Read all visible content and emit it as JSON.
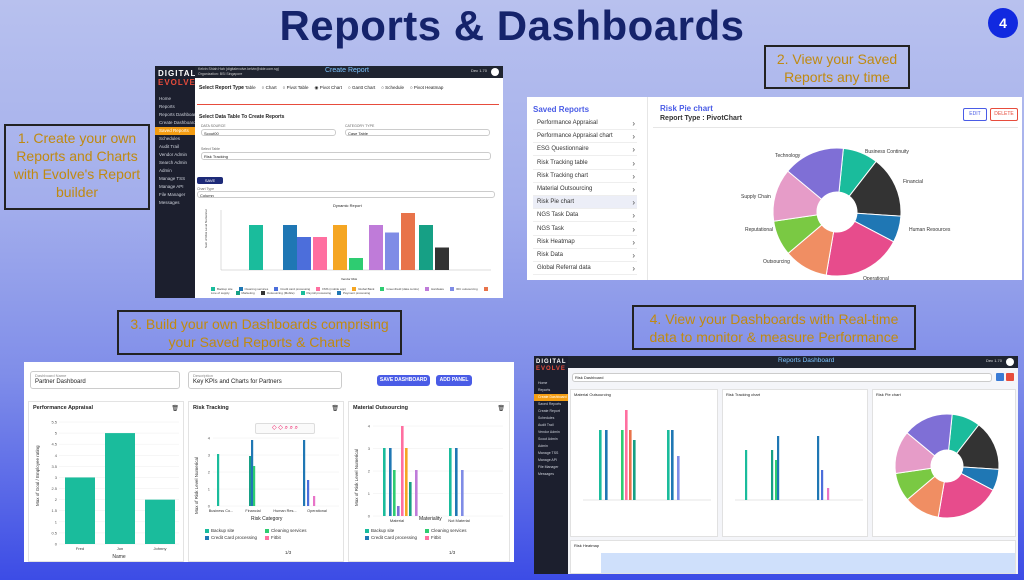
{
  "title": "Reports & Dashboards",
  "page_number": "4",
  "callouts": {
    "c1": "1. Create your own Reports and Charts with Evolve's Report builder",
    "c2": "2. View your Saved Reports any time",
    "c3": "3. Build your own Dashboards comprising your Saved Reports & Charts",
    "c4": "4. View your Dashboards with Real-time data to monitor & measure Performance"
  },
  "shot1": {
    "logo_top": "DIGITAL",
    "logo_bottom": "EVOLVE",
    "user": "Kelvin Shiah Hah (digitalevolve.kelvin@dde.com.sg)",
    "org": "Organization: BSI Singapore",
    "header": "Create Report",
    "header_right": "Dec 1.70",
    "sidebar": [
      "Home",
      "Reports",
      "Reports Dashboard",
      "Create Dashboard",
      "Saved Reports",
      "Schedules",
      "Audit Trail",
      "Vendor Admin",
      "Search Admin",
      "Admin",
      "Manage TSS",
      "Manage API",
      "File Manager",
      "Messages"
    ],
    "report_type_label": "Select Report Type",
    "report_types": [
      "Table",
      "Chart",
      "Pivot Table",
      "Pivot Chart",
      "Gantt Chart",
      "Schedule",
      "Pivot Heatmap"
    ],
    "datatable_heading": "Select Data Table To Create Reports",
    "data_source_label": "DATA SOURCE",
    "data_source_value": "Scout00",
    "category_label": "CATEGORY TYPE",
    "category_value": "Case Table",
    "select_table_label": "Select Table",
    "select_table_value": "Risk Tracking",
    "save_button": "SAVE REPORT",
    "chart_type_label": "Chart Type",
    "chart_type_value": "Column",
    "chart_title": "Dynamic Report",
    "x_axis": "Vendor Risk",
    "y_axis": "Sum of Risk Level Numerical"
  },
  "shot2": {
    "list_title": "Saved Reports",
    "items": [
      "Performance Appraisal",
      "Performance Appraisal chart",
      "ESG Questionnaire",
      "Risk Tracking table",
      "Risk Tracking chart",
      "Material Outsourcing",
      "Risk Pie chart",
      "NGS Task Data",
      "NGS Task",
      "Risk Heatmap",
      "Risk Data",
      "Global Referral data"
    ],
    "active_index": 6,
    "report_title": "Risk Pie chart",
    "report_type": "Report Type : PivotChart",
    "edit": "EDIT",
    "delete": "DELETE",
    "pie_labels": [
      "Business Continuity",
      "Financial",
      "Human Resources",
      "Operational",
      "Outsourcing",
      "Reputational",
      "Supply Chain",
      "Technology"
    ],
    "colors": {
      "accent": "#4a5ce6"
    }
  },
  "shot3": {
    "name_label": "Dashboard Name",
    "name_value": "Partner Dashboard",
    "desc_label": "Description",
    "desc_value": "Key KPIs and Charts for Partners",
    "save": "SAVE DASHBOARD",
    "add": "ADD PANEL",
    "panels": [
      "Performance Appraisal",
      "Risk Tracking",
      "Material Outsourcing"
    ],
    "p1_ylabel": "Max of Goal / Employee rating",
    "p1_xlabel": "Name",
    "p1_cats": [
      "Fred",
      "Jon",
      "Johnny"
    ],
    "p1_ticks": [
      "5.5",
      "5",
      "4.5",
      "4",
      "3.5",
      "3",
      "2.5",
      "2",
      "1.5",
      "1",
      "0.5",
      "0"
    ],
    "p2_ylabel": "Max of Risk Level Numerical",
    "p2_xlabel": "Risk Category",
    "p2_cats": [
      "Business Co...",
      "Financial",
      "Human Res...",
      "Operational"
    ],
    "p2_legend": [
      "Backup site",
      "Cleaning services",
      "Credit Card processing",
      "Fitbit"
    ],
    "p3_ylabel": "Max of Risk Level Numerical",
    "p3_xlabel": "Materiality",
    "p3_cats": [
      "Material",
      "Not Material"
    ],
    "p3_legend": [
      "Backup site",
      "Cleaning services",
      "Credit Card processing",
      "Fitbit"
    ],
    "pager": "1/3"
  },
  "shot4": {
    "header": "Reports Dashboard",
    "header_right": "Dec 1.70",
    "dropdown": "Risk Dashboard",
    "panels": [
      "Material Outsourcing",
      "Risk Tracking chart",
      "Risk Pie chart",
      "Risk Heatmap"
    ],
    "sidebar": [
      "Home",
      "Reports",
      "Create Dashboard",
      "Saved Reports",
      "Create Report",
      "Schedules",
      "Audit Trail",
      "Vendor Admin",
      "Scout Admin",
      "Admin",
      "Manage TSS",
      "Manage API",
      "File Manager",
      "Messages"
    ]
  },
  "chart_data": [
    {
      "type": "bar",
      "title": "Dynamic Report",
      "xlabel": "Vendor Risk",
      "ylabel": "Sum of Risk Level Numerical",
      "series": [
        {
          "values": [
            3,
            3,
            2.2,
            2.2,
            3,
            0.8,
            3,
            2.5,
            3.8,
            3,
            1.5
          ]
        }
      ]
    },
    {
      "type": "bar",
      "title": "Performance Appraisal",
      "xlabel": "Name",
      "ylabel": "Max of Goal / Employee rating",
      "categories": [
        "Fred",
        "Jon",
        "Johnny"
      ],
      "values": [
        3,
        5,
        2
      ],
      "ylim": [
        0,
        5.5
      ]
    },
    {
      "type": "pie",
      "title": "Risk Pie chart",
      "categories": [
        "Business Continuity",
        "Financial",
        "Human Resources",
        "Operational",
        "Outsourcing",
        "Reputational",
        "Supply Chain",
        "Technology"
      ],
      "values": [
        8,
        14,
        6,
        18,
        10,
        8,
        12,
        14
      ]
    }
  ]
}
